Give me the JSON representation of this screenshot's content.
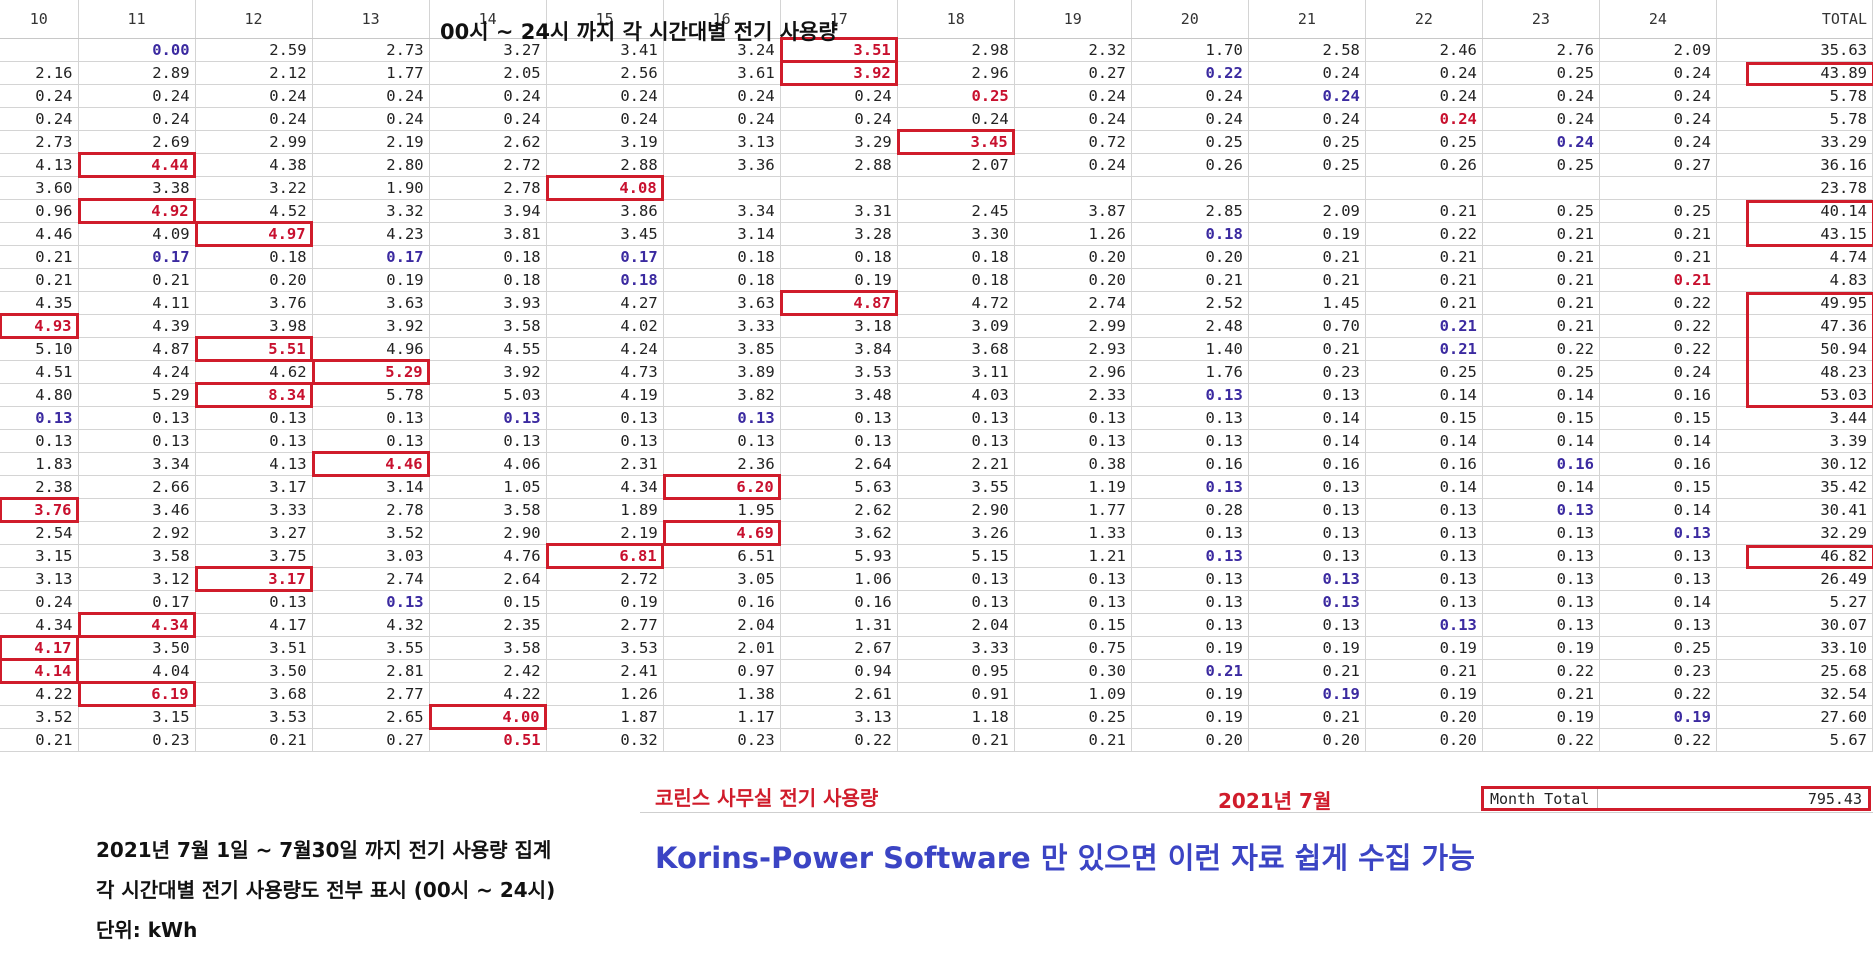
{
  "header": {
    "columns": [
      "10",
      "11",
      "12",
      "13",
      "14",
      "15",
      "16",
      "17",
      "18",
      "19",
      "20",
      "21",
      "22",
      "23",
      "24",
      "TOTAL"
    ],
    "title": "00시 ~ 24시 까지 각 시간대별 전기 사용량"
  },
  "rows": [
    [
      "",
      "0.00",
      "2.59",
      "2.73",
      "3.27",
      "3.41",
      "3.24",
      "3.51",
      "2.98",
      "2.32",
      "1.70",
      "2.58",
      "2.46",
      "2.76",
      "2.09",
      "35.63"
    ],
    [
      "2.16",
      "2.89",
      "2.12",
      "1.77",
      "2.05",
      "2.56",
      "3.61",
      "3.92",
      "2.96",
      "0.27",
      "0.22",
      "0.24",
      "0.24",
      "0.25",
      "0.24",
      "43.89"
    ],
    [
      "0.24",
      "0.24",
      "0.24",
      "0.24",
      "0.24",
      "0.24",
      "0.24",
      "0.24",
      "0.25",
      "0.24",
      "0.24",
      "0.24",
      "0.24",
      "0.24",
      "0.24",
      "5.78"
    ],
    [
      "0.24",
      "0.24",
      "0.24",
      "0.24",
      "0.24",
      "0.24",
      "0.24",
      "0.24",
      "0.24",
      "0.24",
      "0.24",
      "0.24",
      "0.24",
      "0.24",
      "0.24",
      "5.78"
    ],
    [
      "2.73",
      "2.69",
      "2.99",
      "2.19",
      "2.62",
      "3.19",
      "3.13",
      "3.29",
      "3.45",
      "0.72",
      "0.25",
      "0.25",
      "0.25",
      "0.24",
      "0.24",
      "33.29"
    ],
    [
      "4.13",
      "4.44",
      "4.38",
      "2.80",
      "2.72",
      "2.88",
      "3.36",
      "2.88",
      "2.07",
      "0.24",
      "0.26",
      "0.25",
      "0.26",
      "0.25",
      "0.27",
      "36.16"
    ],
    [
      "3.60",
      "3.38",
      "3.22",
      "1.90",
      "2.78",
      "4.08",
      "",
      "",
      "",
      "",
      "",
      "",
      "",
      "",
      "",
      "23.78"
    ],
    [
      "0.96",
      "4.92",
      "4.52",
      "3.32",
      "3.94",
      "3.86",
      "3.34",
      "3.31",
      "2.45",
      "3.87",
      "2.85",
      "2.09",
      "0.21",
      "0.25",
      "0.25",
      "40.14"
    ],
    [
      "4.46",
      "4.09",
      "4.97",
      "4.23",
      "3.81",
      "3.45",
      "3.14",
      "3.28",
      "3.30",
      "1.26",
      "0.18",
      "0.19",
      "0.22",
      "0.21",
      "0.21",
      "43.15"
    ],
    [
      "0.21",
      "0.17",
      "0.18",
      "0.17",
      "0.18",
      "0.17",
      "0.18",
      "0.18",
      "0.18",
      "0.20",
      "0.20",
      "0.21",
      "0.21",
      "0.21",
      "0.21",
      "4.74"
    ],
    [
      "0.21",
      "0.21",
      "0.20",
      "0.19",
      "0.18",
      "0.18",
      "0.18",
      "0.19",
      "0.18",
      "0.20",
      "0.21",
      "0.21",
      "0.21",
      "0.21",
      "0.21",
      "4.83"
    ],
    [
      "4.35",
      "4.11",
      "3.76",
      "3.63",
      "3.93",
      "4.27",
      "3.63",
      "4.87",
      "4.72",
      "2.74",
      "2.52",
      "1.45",
      "0.21",
      "0.21",
      "0.22",
      "49.95"
    ],
    [
      "4.93",
      "4.39",
      "3.98",
      "3.92",
      "3.58",
      "4.02",
      "3.33",
      "3.18",
      "3.09",
      "2.99",
      "2.48",
      "0.70",
      "0.21",
      "0.21",
      "0.22",
      "47.36"
    ],
    [
      "5.10",
      "4.87",
      "5.51",
      "4.96",
      "4.55",
      "4.24",
      "3.85",
      "3.84",
      "3.68",
      "2.93",
      "1.40",
      "0.21",
      "0.21",
      "0.22",
      "0.22",
      "50.94"
    ],
    [
      "4.51",
      "4.24",
      "4.62",
      "5.29",
      "3.92",
      "4.73",
      "3.89",
      "3.53",
      "3.11",
      "2.96",
      "1.76",
      "0.23",
      "0.25",
      "0.25",
      "0.24",
      "48.23"
    ],
    [
      "4.80",
      "5.29",
      "8.34",
      "5.78",
      "5.03",
      "4.19",
      "3.82",
      "3.48",
      "4.03",
      "2.33",
      "0.13",
      "0.13",
      "0.14",
      "0.14",
      "0.16",
      "53.03"
    ],
    [
      "0.13",
      "0.13",
      "0.13",
      "0.13",
      "0.13",
      "0.13",
      "0.13",
      "0.13",
      "0.13",
      "0.13",
      "0.13",
      "0.14",
      "0.15",
      "0.15",
      "0.15",
      "3.44"
    ],
    [
      "0.13",
      "0.13",
      "0.13",
      "0.13",
      "0.13",
      "0.13",
      "0.13",
      "0.13",
      "0.13",
      "0.13",
      "0.13",
      "0.14",
      "0.14",
      "0.14",
      "0.14",
      "3.39"
    ],
    [
      "1.83",
      "3.34",
      "4.13",
      "4.46",
      "4.06",
      "2.31",
      "2.36",
      "2.64",
      "2.21",
      "0.38",
      "0.16",
      "0.16",
      "0.16",
      "0.16",
      "0.16",
      "30.12"
    ],
    [
      "2.38",
      "2.66",
      "3.17",
      "3.14",
      "1.05",
      "4.34",
      "6.20",
      "5.63",
      "3.55",
      "1.19",
      "0.13",
      "0.13",
      "0.14",
      "0.14",
      "0.15",
      "35.42"
    ],
    [
      "3.76",
      "3.46",
      "3.33",
      "2.78",
      "3.58",
      "1.89",
      "1.95",
      "2.62",
      "2.90",
      "1.77",
      "0.28",
      "0.13",
      "0.13",
      "0.13",
      "0.14",
      "30.41"
    ],
    [
      "2.54",
      "2.92",
      "3.27",
      "3.52",
      "2.90",
      "2.19",
      "4.69",
      "3.62",
      "3.26",
      "1.33",
      "0.13",
      "0.13",
      "0.13",
      "0.13",
      "0.13",
      "32.29"
    ],
    [
      "3.15",
      "3.58",
      "3.75",
      "3.03",
      "4.76",
      "6.81",
      "6.51",
      "5.93",
      "5.15",
      "1.21",
      "0.13",
      "0.13",
      "0.13",
      "0.13",
      "0.13",
      "46.82"
    ],
    [
      "3.13",
      "3.12",
      "3.17",
      "2.74",
      "2.64",
      "2.72",
      "3.05",
      "1.06",
      "0.13",
      "0.13",
      "0.13",
      "0.13",
      "0.13",
      "0.13",
      "0.13",
      "26.49"
    ],
    [
      "0.24",
      "0.17",
      "0.13",
      "0.13",
      "0.15",
      "0.19",
      "0.16",
      "0.16",
      "0.13",
      "0.13",
      "0.13",
      "0.13",
      "0.13",
      "0.13",
      "0.14",
      "5.27"
    ],
    [
      "4.34",
      "4.34",
      "4.17",
      "4.32",
      "2.35",
      "2.77",
      "2.04",
      "1.31",
      "2.04",
      "0.15",
      "0.13",
      "0.13",
      "0.13",
      "0.13",
      "0.13",
      "30.07"
    ],
    [
      "4.17",
      "3.50",
      "3.51",
      "3.55",
      "3.58",
      "3.53",
      "2.01",
      "2.67",
      "3.33",
      "0.75",
      "0.19",
      "0.19",
      "0.19",
      "0.19",
      "0.25",
      "33.10"
    ],
    [
      "4.14",
      "4.04",
      "3.50",
      "2.81",
      "2.42",
      "2.41",
      "0.97",
      "0.94",
      "0.95",
      "0.30",
      "0.21",
      "0.21",
      "0.21",
      "0.22",
      "0.23",
      "25.68"
    ],
    [
      "4.22",
      "6.19",
      "3.68",
      "2.77",
      "4.22",
      "1.26",
      "1.38",
      "2.61",
      "0.91",
      "1.09",
      "0.19",
      "0.19",
      "0.19",
      "0.21",
      "0.22",
      "32.54"
    ],
    [
      "3.52",
      "3.15",
      "3.53",
      "2.65",
      "4.00",
      "1.87",
      "1.17",
      "3.13",
      "1.18",
      "0.25",
      "0.19",
      "0.21",
      "0.20",
      "0.19",
      "0.19",
      "27.60"
    ],
    [
      "0.21",
      "0.23",
      "0.21",
      "0.27",
      "0.51",
      "0.32",
      "0.23",
      "0.22",
      "0.21",
      "0.21",
      "0.20",
      "0.20",
      "0.20",
      "0.22",
      "0.22",
      "5.67"
    ]
  ],
  "styles": {
    "boxed": [
      [
        0,
        7
      ],
      [
        1,
        7
      ],
      [
        4,
        8
      ],
      [
        5,
        1
      ],
      [
        6,
        5
      ],
      [
        7,
        1
      ],
      [
        8,
        2
      ],
      [
        11,
        7
      ],
      [
        12,
        0
      ],
      [
        13,
        2
      ],
      [
        14,
        3
      ],
      [
        15,
        2
      ],
      [
        18,
        3
      ],
      [
        19,
        6
      ],
      [
        20,
        0
      ],
      [
        21,
        6
      ],
      [
        22,
        5
      ],
      [
        23,
        2
      ],
      [
        25,
        1
      ],
      [
        26,
        0
      ],
      [
        27,
        0
      ],
      [
        28,
        1
      ],
      [
        29,
        4
      ]
    ],
    "red": [
      [
        2,
        8
      ],
      [
        3,
        12
      ],
      [
        10,
        14
      ],
      [
        30,
        4
      ]
    ],
    "blue": [
      [
        0,
        1
      ],
      [
        1,
        10
      ],
      [
        2,
        11
      ],
      [
        4,
        13
      ],
      [
        8,
        10
      ],
      [
        9,
        1
      ],
      [
        9,
        3
      ],
      [
        9,
        5
      ],
      [
        10,
        5
      ],
      [
        12,
        12
      ],
      [
        13,
        12
      ],
      [
        15,
        10
      ],
      [
        16,
        0
      ],
      [
        16,
        4
      ],
      [
        16,
        6
      ],
      [
        18,
        13
      ],
      [
        19,
        10
      ],
      [
        20,
        13
      ],
      [
        21,
        14
      ],
      [
        22,
        10
      ],
      [
        23,
        11
      ],
      [
        24,
        3
      ],
      [
        24,
        11
      ],
      [
        25,
        12
      ],
      [
        27,
        10
      ],
      [
        28,
        11
      ],
      [
        29,
        14
      ]
    ],
    "total_boxes": [
      [
        1,
        1
      ],
      [
        7,
        8
      ],
      [
        11,
        15
      ],
      [
        22,
        22
      ]
    ]
  },
  "footer": {
    "office_label": "코린스 사무실 전기 사용량",
    "month_label": "2021년 7월",
    "month_total_label": "Month Total",
    "month_total_value": "795.43"
  },
  "notes": [
    "2021년 7월 1일 ~ 7월30일 까지 전기 사용량 집계",
    "각 시간대별 전기 사용량도 전부 표시 (00시 ~ 24시)",
    "단위: kWh"
  ],
  "promo": "Korins-Power Software 만 있으면 이런 자료 쉽게 수집 가능",
  "colors": {
    "accent_red": "#d01c2b",
    "value_blue": "#3b2aa0",
    "promo_blue": "#3b44c4"
  }
}
